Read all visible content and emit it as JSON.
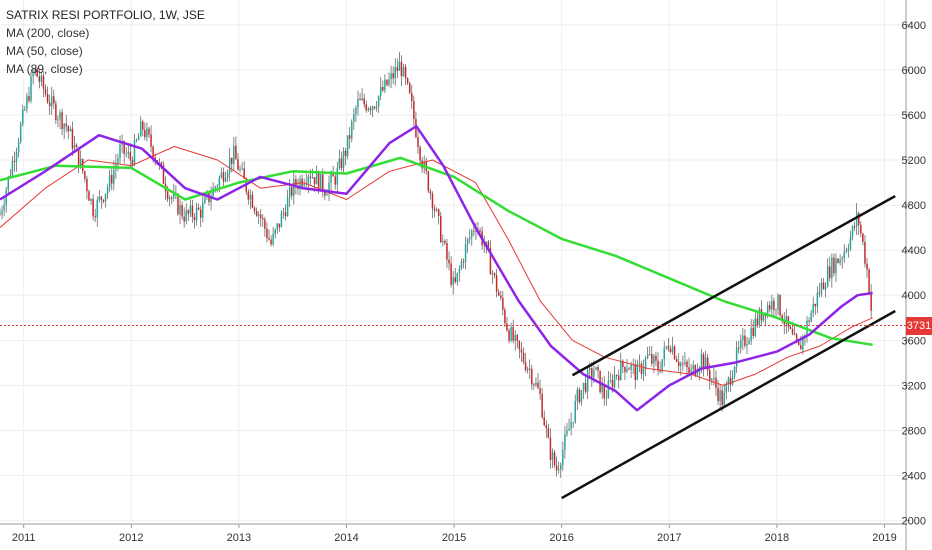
{
  "chart_data": {
    "type": "candlestick",
    "title": "SATRIX RESI PORTFOLIO, 1W, JSE",
    "indicators": [
      {
        "name": "MA (200, close)",
        "color": "#33dd33"
      },
      {
        "name": "MA (50, close)",
        "color": "#8e24e8"
      },
      {
        "name": "MA (89, close)",
        "color": "#e53935"
      }
    ],
    "x_ticks": [
      "2011",
      "2012",
      "2013",
      "2014",
      "2015",
      "2016",
      "2017",
      "2018",
      "2019"
    ],
    "y_ticks": [
      2000,
      2400,
      2800,
      3200,
      3600,
      4000,
      4400,
      4800,
      5200,
      5600,
      6000,
      6400
    ],
    "ylim": [
      1970,
      6620
    ],
    "xlim": [
      2010.78,
      2019.2
    ],
    "last_price": 3731,
    "price_series": [
      [
        2010.78,
        4720
      ],
      [
        2010.9,
        5200
      ],
      [
        2011.0,
        5600
      ],
      [
        2011.1,
        6000
      ],
      [
        2011.25,
        5700
      ],
      [
        2011.4,
        5500
      ],
      [
        2011.55,
        5100
      ],
      [
        2011.65,
        4750
      ],
      [
        2011.8,
        5000
      ],
      [
        2011.9,
        5300
      ],
      [
        2012.0,
        5200
      ],
      [
        2012.1,
        5500
      ],
      [
        2012.2,
        5300
      ],
      [
        2012.35,
        4900
      ],
      [
        2012.5,
        4700
      ],
      [
        2012.65,
        4750
      ],
      [
        2012.8,
        5000
      ],
      [
        2012.95,
        5250
      ],
      [
        2013.05,
        5000
      ],
      [
        2013.2,
        4700
      ],
      [
        2013.3,
        4450
      ],
      [
        2013.4,
        4700
      ],
      [
        2013.5,
        4950
      ],
      [
        2013.65,
        5100
      ],
      [
        2013.8,
        4950
      ],
      [
        2013.9,
        5050
      ],
      [
        2014.0,
        5300
      ],
      [
        2014.1,
        5700
      ],
      [
        2014.25,
        5700
      ],
      [
        2014.4,
        5900
      ],
      [
        2014.5,
        6050
      ],
      [
        2014.6,
        5700
      ],
      [
        2014.7,
        5200
      ],
      [
        2014.8,
        4850
      ],
      [
        2014.9,
        4450
      ],
      [
        2015.0,
        4050
      ],
      [
        2015.1,
        4400
      ],
      [
        2015.2,
        4650
      ],
      [
        2015.3,
        4400
      ],
      [
        2015.4,
        4050
      ],
      [
        2015.5,
        3700
      ],
      [
        2015.6,
        3500
      ],
      [
        2015.7,
        3350
      ],
      [
        2015.8,
        3100
      ],
      [
        2015.88,
        2650
      ],
      [
        2015.95,
        2450
      ],
      [
        2016.05,
        2750
      ],
      [
        2016.15,
        3100
      ],
      [
        2016.3,
        3350
      ],
      [
        2016.4,
        3100
      ],
      [
        2016.5,
        3300
      ],
      [
        2016.6,
        3400
      ],
      [
        2016.7,
        3300
      ],
      [
        2016.8,
        3450
      ],
      [
        2016.9,
        3350
      ],
      [
        2017.0,
        3600
      ],
      [
        2017.1,
        3400
      ],
      [
        2017.2,
        3300
      ],
      [
        2017.3,
        3450
      ],
      [
        2017.4,
        3250
      ],
      [
        2017.5,
        3050
      ],
      [
        2017.6,
        3400
      ],
      [
        2017.7,
        3600
      ],
      [
        2017.8,
        3750
      ],
      [
        2017.9,
        3900
      ],
      [
        2018.0,
        3950
      ],
      [
        2018.1,
        3700
      ],
      [
        2018.2,
        3500
      ],
      [
        2018.3,
        3800
      ],
      [
        2018.4,
        4050
      ],
      [
        2018.5,
        4250
      ],
      [
        2018.6,
        4350
      ],
      [
        2018.7,
        4550
      ],
      [
        2018.75,
        4700
      ],
      [
        2018.8,
        4450
      ],
      [
        2018.85,
        4150
      ],
      [
        2018.89,
        3731
      ]
    ],
    "ma200_series": [
      [
        2010.78,
        5020
      ],
      [
        2011.3,
        5150
      ],
      [
        2012.0,
        5130
      ],
      [
        2012.5,
        4850
      ],
      [
        2013.0,
        5000
      ],
      [
        2013.5,
        5100
      ],
      [
        2014.0,
        5080
      ],
      [
        2014.5,
        5220
      ],
      [
        2015.0,
        5050
      ],
      [
        2015.5,
        4750
      ],
      [
        2016.0,
        4500
      ],
      [
        2016.5,
        4350
      ],
      [
        2017.0,
        4150
      ],
      [
        2017.5,
        3950
      ],
      [
        2018.0,
        3800
      ],
      [
        2018.5,
        3620
      ],
      [
        2018.89,
        3560
      ]
    ],
    "ma50_series": [
      [
        2010.78,
        4850
      ],
      [
        2011.2,
        5100
      ],
      [
        2011.7,
        5420
      ],
      [
        2012.1,
        5300
      ],
      [
        2012.5,
        4950
      ],
      [
        2012.8,
        4850
      ],
      [
        2013.2,
        5050
      ],
      [
        2013.6,
        4950
      ],
      [
        2014.0,
        4900
      ],
      [
        2014.4,
        5350
      ],
      [
        2014.65,
        5500
      ],
      [
        2014.9,
        5150
      ],
      [
        2015.2,
        4600
      ],
      [
        2015.6,
        3950
      ],
      [
        2015.9,
        3550
      ],
      [
        2016.2,
        3300
      ],
      [
        2016.5,
        3150
      ],
      [
        2016.7,
        2980
      ],
      [
        2017.0,
        3200
      ],
      [
        2017.3,
        3350
      ],
      [
        2017.6,
        3400
      ],
      [
        2018.0,
        3500
      ],
      [
        2018.3,
        3650
      ],
      [
        2018.6,
        3900
      ],
      [
        2018.75,
        4000
      ],
      [
        2018.89,
        4020
      ]
    ],
    "ma89_series": [
      [
        2010.78,
        4600
      ],
      [
        2011.2,
        4950
      ],
      [
        2011.6,
        5200
      ],
      [
        2012.0,
        5150
      ],
      [
        2012.4,
        5320
      ],
      [
        2012.8,
        5200
      ],
      [
        2013.2,
        4950
      ],
      [
        2013.6,
        5000
      ],
      [
        2014.0,
        4850
      ],
      [
        2014.4,
        5100
      ],
      [
        2014.8,
        5200
      ],
      [
        2015.2,
        5000
      ],
      [
        2015.5,
        4500
      ],
      [
        2015.8,
        3950
      ],
      [
        2016.1,
        3600
      ],
      [
        2016.4,
        3450
      ],
      [
        2016.8,
        3350
      ],
      [
        2017.2,
        3300
      ],
      [
        2017.5,
        3200
      ],
      [
        2017.8,
        3300
      ],
      [
        2018.1,
        3450
      ],
      [
        2018.4,
        3550
      ],
      [
        2018.7,
        3720
      ],
      [
        2018.89,
        3800
      ]
    ],
    "channel_upper": [
      [
        2016.1,
        3290
      ],
      [
        2019.1,
        4880
      ]
    ],
    "channel_lower": [
      [
        2016.0,
        2200
      ],
      [
        2019.1,
        3860
      ]
    ]
  }
}
